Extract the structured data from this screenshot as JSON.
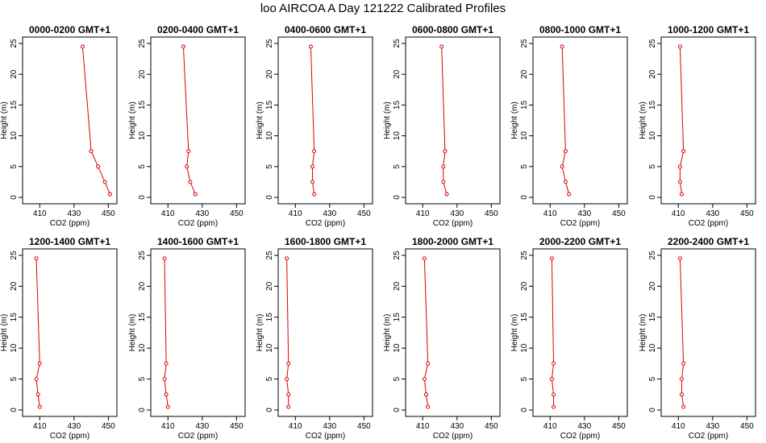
{
  "title": "loo AIRCOA A  Day 121222  Calibrated Profiles",
  "chart_data": {
    "type": "line",
    "series_color": "#dd0000",
    "xlabel": "CO2 (ppm)",
    "ylabel": "Height (m)",
    "xlim": [
      400,
      455
    ],
    "ylim": [
      0,
      25
    ],
    "xticks": [
      410,
      430,
      450
    ],
    "yticks": [
      0,
      5,
      10,
      15,
      20,
      25
    ],
    "heights": [
      0.5,
      2.5,
      5,
      7.5,
      24.5
    ],
    "panels": [
      {
        "title": "0000-0200 GMT+1",
        "x": [
          451,
          448,
          444,
          440,
          435
        ]
      },
      {
        "title": "0200-0400 GMT+1",
        "x": [
          426,
          423,
          421,
          422,
          419
        ]
      },
      {
        "title": "0400-0600 GMT+1",
        "x": [
          421,
          420,
          420,
          421,
          419
        ]
      },
      {
        "title": "0600-0800 GMT+1",
        "x": [
          424,
          422,
          422,
          423,
          421
        ]
      },
      {
        "title": "0800-1000 GMT+1",
        "x": [
          421,
          419,
          417,
          419,
          417
        ]
      },
      {
        "title": "1000-1200 GMT+1",
        "x": [
          412,
          411,
          411,
          413,
          411
        ]
      },
      {
        "title": "1200-1400 GMT+1",
        "x": [
          410,
          409,
          408,
          410,
          408
        ]
      },
      {
        "title": "1400-1600 GMT+1",
        "x": [
          410,
          409,
          408,
          409,
          408
        ]
      },
      {
        "title": "1600-1800 GMT+1",
        "x": [
          406,
          406,
          405,
          406,
          405
        ]
      },
      {
        "title": "1800-2000 GMT+1",
        "x": [
          413,
          412,
          411,
          413,
          411
        ]
      },
      {
        "title": "2000-2200 GMT+1",
        "x": [
          412,
          412,
          411,
          412,
          411
        ]
      },
      {
        "title": "2200-2400 GMT+1",
        "x": [
          413,
          412,
          412,
          413,
          411
        ]
      }
    ]
  }
}
